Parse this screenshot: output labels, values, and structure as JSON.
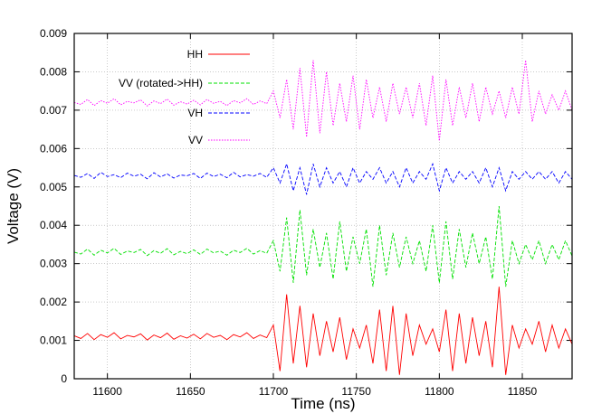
{
  "chart_data": {
    "type": "line",
    "xlabel": "Time (ns)",
    "ylabel": "Voltage (V)",
    "xlim": [
      11580,
      11880
    ],
    "ylim": [
      0,
      0.009
    ],
    "xticks": [
      11600,
      11650,
      11700,
      11750,
      11800,
      11850
    ],
    "yticks": [
      0,
      0.001,
      0.002,
      0.003,
      0.004,
      0.005,
      0.006,
      0.007,
      0.008,
      0.009
    ],
    "grid": true,
    "legend": "upper left",
    "x": [
      11580,
      11584,
      11588,
      11592,
      11596,
      11600,
      11604,
      11608,
      11612,
      11616,
      11620,
      11624,
      11628,
      11632,
      11636,
      11640,
      11644,
      11648,
      11652,
      11656,
      11660,
      11664,
      11668,
      11672,
      11676,
      11680,
      11684,
      11688,
      11692,
      11696,
      11700,
      11704,
      11708,
      11712,
      11716,
      11720,
      11724,
      11728,
      11732,
      11736,
      11740,
      11744,
      11748,
      11752,
      11756,
      11760,
      11764,
      11768,
      11772,
      11776,
      11780,
      11784,
      11788,
      11792,
      11796,
      11800,
      11804,
      11808,
      11812,
      11816,
      11820,
      11824,
      11828,
      11832,
      11836,
      11840,
      11844,
      11848,
      11852,
      11856,
      11860,
      11864,
      11868,
      11872,
      11876,
      11880
    ],
    "series": [
      {
        "name": "HH",
        "color": "#ff0000",
        "style": "solid",
        "values": [
          0.00112,
          0.00105,
          0.00118,
          0.00102,
          0.00115,
          0.00108,
          0.0012,
          0.00104,
          0.00113,
          0.00109,
          0.00117,
          0.00101,
          0.00114,
          0.00107,
          0.00119,
          0.00103,
          0.00112,
          0.00106,
          0.00116,
          0.00104,
          0.00118,
          0.00108,
          0.00113,
          0.00102,
          0.00115,
          0.00109,
          0.0012,
          0.00105,
          0.00114,
          0.00107,
          0.0014,
          0.0002,
          0.0022,
          0.0004,
          0.0019,
          0.0003,
          0.0017,
          0.0006,
          0.0015,
          0.0007,
          0.0016,
          0.0005,
          0.0013,
          0.0008,
          0.0014,
          0.0004,
          0.0018,
          0.0002,
          0.0019,
          0.0001,
          0.0017,
          0.0006,
          0.0014,
          0.0009,
          0.0013,
          0.0007,
          0.0018,
          0.0002,
          0.0017,
          0.0004,
          0.0016,
          0.0006,
          0.0015,
          0.0003,
          0.0024,
          0.0001,
          0.0014,
          0.0008,
          0.0013,
          0.0009,
          0.0015,
          0.0007,
          0.0014,
          0.0008,
          0.0013,
          0.0009
        ]
      },
      {
        "name": "VV (rotated->HH)",
        "color": "#00e000",
        "style": "dashed",
        "values": [
          0.0033,
          0.00325,
          0.00338,
          0.00322,
          0.00335,
          0.00328,
          0.0034,
          0.00324,
          0.00333,
          0.00329,
          0.00337,
          0.00321,
          0.00334,
          0.00327,
          0.00339,
          0.00323,
          0.00332,
          0.00326,
          0.00336,
          0.00324,
          0.00338,
          0.00328,
          0.00333,
          0.00322,
          0.00335,
          0.00329,
          0.0034,
          0.00325,
          0.00334,
          0.00327,
          0.0036,
          0.0028,
          0.0042,
          0.0025,
          0.0044,
          0.0027,
          0.0039,
          0.0029,
          0.0038,
          0.0026,
          0.0041,
          0.0028,
          0.0037,
          0.003,
          0.0039,
          0.0024,
          0.004,
          0.0027,
          0.0038,
          0.0029,
          0.0037,
          0.003,
          0.0036,
          0.0028,
          0.004,
          0.0025,
          0.0041,
          0.0026,
          0.0039,
          0.0029,
          0.0038,
          0.003,
          0.0037,
          0.0026,
          0.0045,
          0.0024,
          0.0036,
          0.003,
          0.0035,
          0.0031,
          0.0036,
          0.003,
          0.0035,
          0.0031,
          0.0036,
          0.0032
        ]
      },
      {
        "name": "VH",
        "color": "#0000ff",
        "style": "dashed",
        "values": [
          0.0053,
          0.00525,
          0.00535,
          0.00522,
          0.00538,
          0.00527,
          0.00532,
          0.00524,
          0.00536,
          0.00528,
          0.00533,
          0.00521,
          0.00537,
          0.00526,
          0.00534,
          0.00523,
          0.00531,
          0.00529,
          0.00535,
          0.00522,
          0.00536,
          0.00527,
          0.00533,
          0.00524,
          0.00538,
          0.00526,
          0.00532,
          0.00528,
          0.00535,
          0.00525,
          0.0055,
          0.0051,
          0.0056,
          0.0049,
          0.0055,
          0.0048,
          0.0056,
          0.005,
          0.0055,
          0.0051,
          0.0054,
          0.005,
          0.0055,
          0.0051,
          0.0054,
          0.0052,
          0.0055,
          0.0051,
          0.0054,
          0.005,
          0.0055,
          0.0051,
          0.0054,
          0.0052,
          0.0056,
          0.0049,
          0.0055,
          0.0051,
          0.0054,
          0.0052,
          0.0054,
          0.0051,
          0.0055,
          0.005,
          0.0055,
          0.0049,
          0.0054,
          0.0052,
          0.0054,
          0.0052,
          0.0054,
          0.0052,
          0.0054,
          0.0051,
          0.0054,
          0.0052
        ]
      },
      {
        "name": "VV",
        "color": "#ff00ff",
        "style": "dotted",
        "values": [
          0.0072,
          0.00715,
          0.00728,
          0.00712,
          0.00725,
          0.00718,
          0.0073,
          0.00714,
          0.00723,
          0.00719,
          0.00727,
          0.00711,
          0.00724,
          0.00717,
          0.00729,
          0.00713,
          0.00722,
          0.00716,
          0.00726,
          0.00714,
          0.00728,
          0.00718,
          0.00723,
          0.00712,
          0.00725,
          0.00719,
          0.0073,
          0.00715,
          0.00724,
          0.00717,
          0.0075,
          0.0068,
          0.0078,
          0.0065,
          0.0081,
          0.0063,
          0.0083,
          0.0064,
          0.008,
          0.0066,
          0.0077,
          0.0067,
          0.0079,
          0.0065,
          0.0078,
          0.0068,
          0.0076,
          0.0067,
          0.0077,
          0.0069,
          0.0076,
          0.0068,
          0.0077,
          0.0066,
          0.0079,
          0.0062,
          0.0078,
          0.0066,
          0.0076,
          0.0068,
          0.0077,
          0.0067,
          0.0076,
          0.0069,
          0.0075,
          0.0068,
          0.0076,
          0.0069,
          0.0083,
          0.0067,
          0.0075,
          0.0069,
          0.0074,
          0.007,
          0.0075,
          0.007
        ]
      }
    ]
  }
}
